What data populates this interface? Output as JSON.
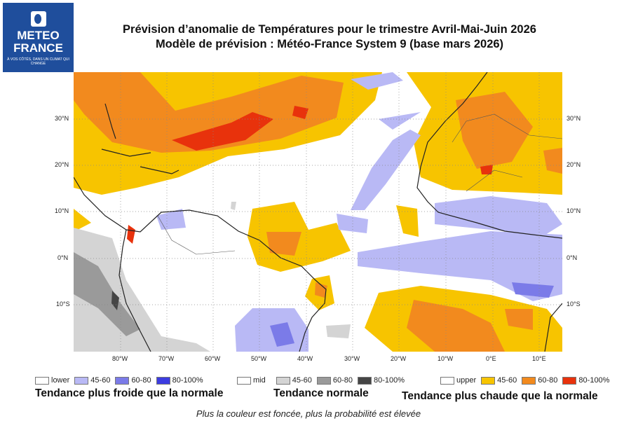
{
  "logo": {
    "line1": "METEO",
    "line2": "FRANCE",
    "tagline": "À VOS CÔTÉS, DANS UN CLIMAT QUI CHANGE",
    "color": "#1f4e9c"
  },
  "title": {
    "line1": "Prévision d’anomalie de Températures pour le trimestre Avril-Mai-Juin 2026",
    "line2": "Modèle de prévision : Météo-France System 9 (base mars 2026)"
  },
  "map": {
    "lon_ticks": [
      "80°W",
      "70°W",
      "60°W",
      "50°W",
      "40°W",
      "30°W",
      "20°W",
      "10°W",
      "0°E",
      "10°E"
    ],
    "lat_ticks": [
      "30°N",
      "20°N",
      "10°N",
      "0°N",
      "10°S"
    ]
  },
  "legend": {
    "lower": {
      "label": "lower",
      "items": [
        "45-60",
        "60-80",
        "80-100%"
      ],
      "colors": [
        "#b9b9f5",
        "#7b7be8",
        "#3c3ce0"
      ],
      "trend": "Tendance plus froide que la normale"
    },
    "mid": {
      "label": "mid",
      "items": [
        "45-60",
        "60-80",
        "80-100%"
      ],
      "colors": [
        "#d4d4d4",
        "#9a9a9a",
        "#454545"
      ],
      "trend": "Tendance normale"
    },
    "upper": {
      "label": "upper",
      "items": [
        "45-60",
        "60-80",
        "80-100%"
      ],
      "colors": [
        "#f7c400",
        "#f28a1e",
        "#e8320c"
      ],
      "trend": "Tendance plus chaude que la normale"
    }
  },
  "note": "Plus la couleur est foncée, plus la probabilité est élevée"
}
